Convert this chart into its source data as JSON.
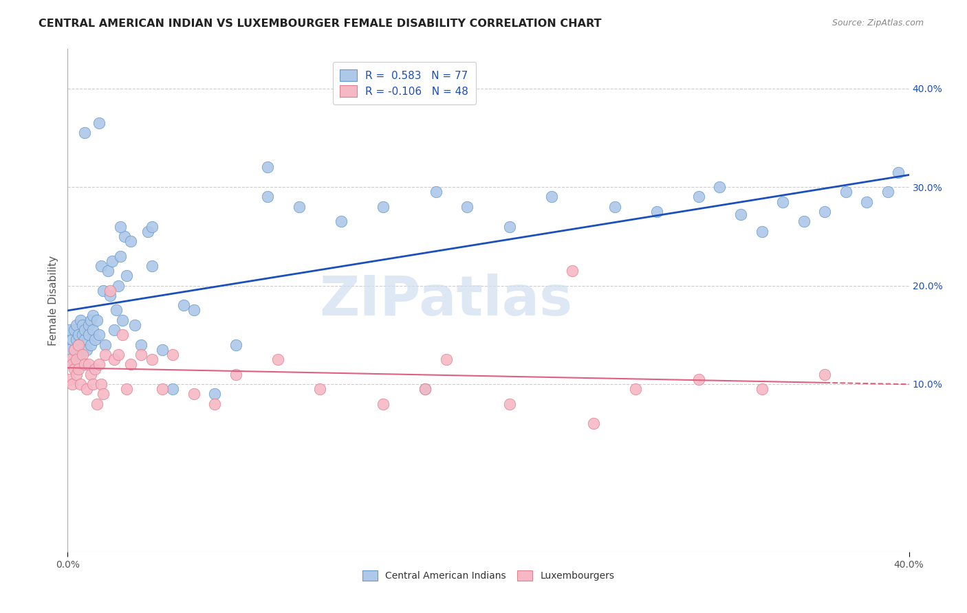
{
  "title": "CENTRAL AMERICAN INDIAN VS LUXEMBOURGER FEMALE DISABILITY CORRELATION CHART",
  "source": "Source: ZipAtlas.com",
  "ylabel": "Female Disability",
  "right_yticks_labels": [
    "40.0%",
    "30.0%",
    "20.0%",
    "10.0%"
  ],
  "right_ytick_vals": [
    0.4,
    0.3,
    0.2,
    0.1
  ],
  "xlim": [
    0.0,
    0.4
  ],
  "ylim": [
    -0.07,
    0.44
  ],
  "blue_R": 0.583,
  "blue_N": 77,
  "pink_R": -0.106,
  "pink_N": 48,
  "watermark": "ZIPatlas",
  "legend_label_blue": "Central American Indians",
  "legend_label_pink": "Luxembourgers",
  "blue_dot_color": "#adc8e8",
  "pink_dot_color": "#f5b8c4",
  "blue_edge_color": "#6699cc",
  "pink_edge_color": "#e08090",
  "blue_line_color": "#1a4fbd",
  "pink_line_color": "#e06080",
  "grid_color": "#cccccc",
  "background_color": "#ffffff",
  "watermark_color": "#d0dff0",
  "blue_x": [
    0.001,
    0.001,
    0.002,
    0.002,
    0.003,
    0.003,
    0.004,
    0.004,
    0.005,
    0.005,
    0.006,
    0.006,
    0.007,
    0.007,
    0.008,
    0.008,
    0.009,
    0.01,
    0.01,
    0.011,
    0.011,
    0.012,
    0.012,
    0.013,
    0.014,
    0.015,
    0.016,
    0.017,
    0.018,
    0.019,
    0.02,
    0.021,
    0.022,
    0.023,
    0.024,
    0.025,
    0.026,
    0.027,
    0.028,
    0.03,
    0.032,
    0.035,
    0.038,
    0.04,
    0.045,
    0.05,
    0.055,
    0.06,
    0.07,
    0.08,
    0.095,
    0.11,
    0.13,
    0.15,
    0.17,
    0.19,
    0.21,
    0.23,
    0.26,
    0.28,
    0.3,
    0.31,
    0.32,
    0.33,
    0.34,
    0.35,
    0.36,
    0.37,
    0.38,
    0.39,
    0.395,
    0.175,
    0.095,
    0.04,
    0.025,
    0.015,
    0.008
  ],
  "blue_y": [
    0.155,
    0.135,
    0.145,
    0.125,
    0.155,
    0.135,
    0.145,
    0.16,
    0.15,
    0.14,
    0.165,
    0.13,
    0.15,
    0.16,
    0.145,
    0.155,
    0.135,
    0.16,
    0.15,
    0.165,
    0.14,
    0.155,
    0.17,
    0.145,
    0.165,
    0.15,
    0.22,
    0.195,
    0.14,
    0.215,
    0.19,
    0.225,
    0.155,
    0.175,
    0.2,
    0.23,
    0.165,
    0.25,
    0.21,
    0.245,
    0.16,
    0.14,
    0.255,
    0.22,
    0.135,
    0.095,
    0.18,
    0.175,
    0.09,
    0.14,
    0.29,
    0.28,
    0.265,
    0.28,
    0.095,
    0.28,
    0.26,
    0.29,
    0.28,
    0.275,
    0.29,
    0.3,
    0.272,
    0.255,
    0.285,
    0.265,
    0.275,
    0.295,
    0.285,
    0.295,
    0.315,
    0.295,
    0.32,
    0.26,
    0.26,
    0.365,
    0.355
  ],
  "pink_x": [
    0.001,
    0.001,
    0.002,
    0.002,
    0.003,
    0.003,
    0.004,
    0.004,
    0.005,
    0.005,
    0.006,
    0.007,
    0.008,
    0.009,
    0.01,
    0.011,
    0.012,
    0.013,
    0.014,
    0.015,
    0.016,
    0.017,
    0.018,
    0.02,
    0.022,
    0.024,
    0.026,
    0.028,
    0.03,
    0.035,
    0.04,
    0.045,
    0.05,
    0.06,
    0.07,
    0.08,
    0.1,
    0.12,
    0.15,
    0.18,
    0.21,
    0.24,
    0.27,
    0.3,
    0.33,
    0.36,
    0.25,
    0.17
  ],
  "pink_y": [
    0.125,
    0.105,
    0.12,
    0.1,
    0.135,
    0.115,
    0.11,
    0.125,
    0.14,
    0.115,
    0.1,
    0.13,
    0.12,
    0.095,
    0.12,
    0.11,
    0.1,
    0.115,
    0.08,
    0.12,
    0.1,
    0.09,
    0.13,
    0.195,
    0.125,
    0.13,
    0.15,
    0.095,
    0.12,
    0.13,
    0.125,
    0.095,
    0.13,
    0.09,
    0.08,
    0.11,
    0.125,
    0.095,
    0.08,
    0.125,
    0.08,
    0.215,
    0.095,
    0.105,
    0.095,
    0.11,
    0.06,
    0.095
  ],
  "legend_R_text_blue": "R =  0.583",
  "legend_N_text_blue": "N = 77",
  "legend_R_text_pink": "R = -0.106",
  "legend_N_text_pink": "N = 48"
}
